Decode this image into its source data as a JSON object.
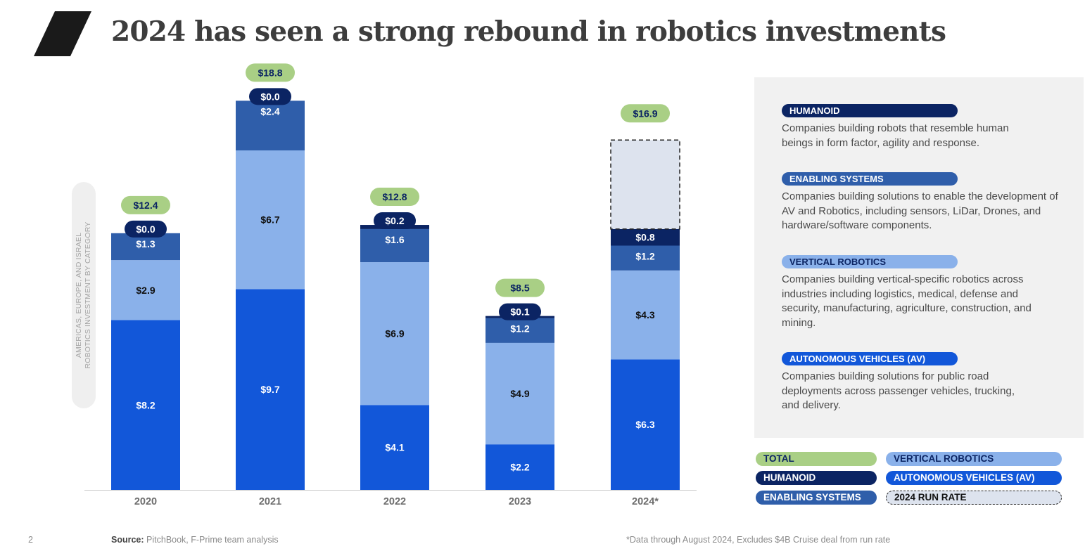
{
  "slide": {
    "title": "2024 has seen a strong rebound in robotics investments",
    "page_number": "2",
    "source_label": "Source:",
    "source_text": "PitchBook, F-Prime team analysis",
    "footnote": "*Data through August 2024, Excludes $4B Cruise deal from run rate"
  },
  "colors": {
    "av": "#1257d9",
    "vertical": "#8ab1ea",
    "enabling": "#2f5eaa",
    "humanoid": "#0b2463",
    "total": "#a9cf85",
    "run_rate": "#dde3ee"
  },
  "chart_data": {
    "type": "bar",
    "stacked": true,
    "unit": "$B",
    "ylabel": "AMERICAS, EUROPE, AND ISRAEL\nROBOTICS INVESTMENT BY CATEGORY",
    "categories": [
      "2020",
      "2021",
      "2022",
      "2023",
      "2024*"
    ],
    "series": [
      {
        "name": "AUTONOMOUS VEHICLES (AV)",
        "values": [
          8.2,
          9.7,
          4.1,
          2.2,
          6.3
        ],
        "labels": [
          "$8.2",
          "$9.7",
          "$4.1",
          "$2.2",
          "$6.3"
        ]
      },
      {
        "name": "VERTICAL ROBOTICS",
        "values": [
          2.9,
          6.7,
          6.9,
          4.9,
          4.3
        ],
        "labels": [
          "$2.9",
          "$6.7",
          "$6.9",
          "$4.9",
          "$4.3"
        ]
      },
      {
        "name": "ENABLING SYSTEMS",
        "values": [
          1.3,
          2.4,
          1.6,
          1.2,
          1.2
        ],
        "labels": [
          "$1.3",
          "$2.4",
          "$1.6",
          "$1.2",
          "$1.2"
        ]
      },
      {
        "name": "HUMANOID",
        "values": [
          0.0,
          0.0,
          0.2,
          0.1,
          0.8
        ],
        "labels": [
          "$0.0",
          "$0.0",
          "$0.2",
          "$0.1",
          "$0.8"
        ]
      }
    ],
    "totals": {
      "name": "TOTAL",
      "values": [
        12.4,
        18.8,
        12.8,
        8.5,
        16.9
      ],
      "labels": [
        "$12.4",
        "$18.8",
        "$12.8",
        "$8.5",
        "$16.9"
      ]
    },
    "run_rate": {
      "name": "2024 RUN RATE",
      "category": "2024*",
      "value": 16.9
    },
    "ylim": [
      0,
      19.5
    ],
    "grid": false
  },
  "definitions": [
    {
      "tag": "HUMANOID",
      "text": "Companies building robots that resemble human beings in form factor, agility and response."
    },
    {
      "tag": "ENABLING SYSTEMS",
      "text": "Companies building solutions to enable the development of AV and Robotics, including sensors, LiDar, Drones, and hardware/software components."
    },
    {
      "tag": "VERTICAL ROBOTICS",
      "text": "Companies building vertical-specific robotics across industries including logistics, medical, defense and security, manufacturing, agriculture, construction, and mining."
    },
    {
      "tag": "AUTONOMOUS VEHICLES (AV)",
      "text": "Companies building solutions for public road deployments across passenger vehicles, trucking, and delivery."
    }
  ],
  "legend": {
    "total": "TOTAL",
    "humanoid": "HUMANOID",
    "enabling": "ENABLING SYSTEMS",
    "vertical": "VERTICAL ROBOTICS",
    "av": "AUTONOMOUS VEHICLES (AV)",
    "run_rate": "2024 RUN RATE"
  }
}
